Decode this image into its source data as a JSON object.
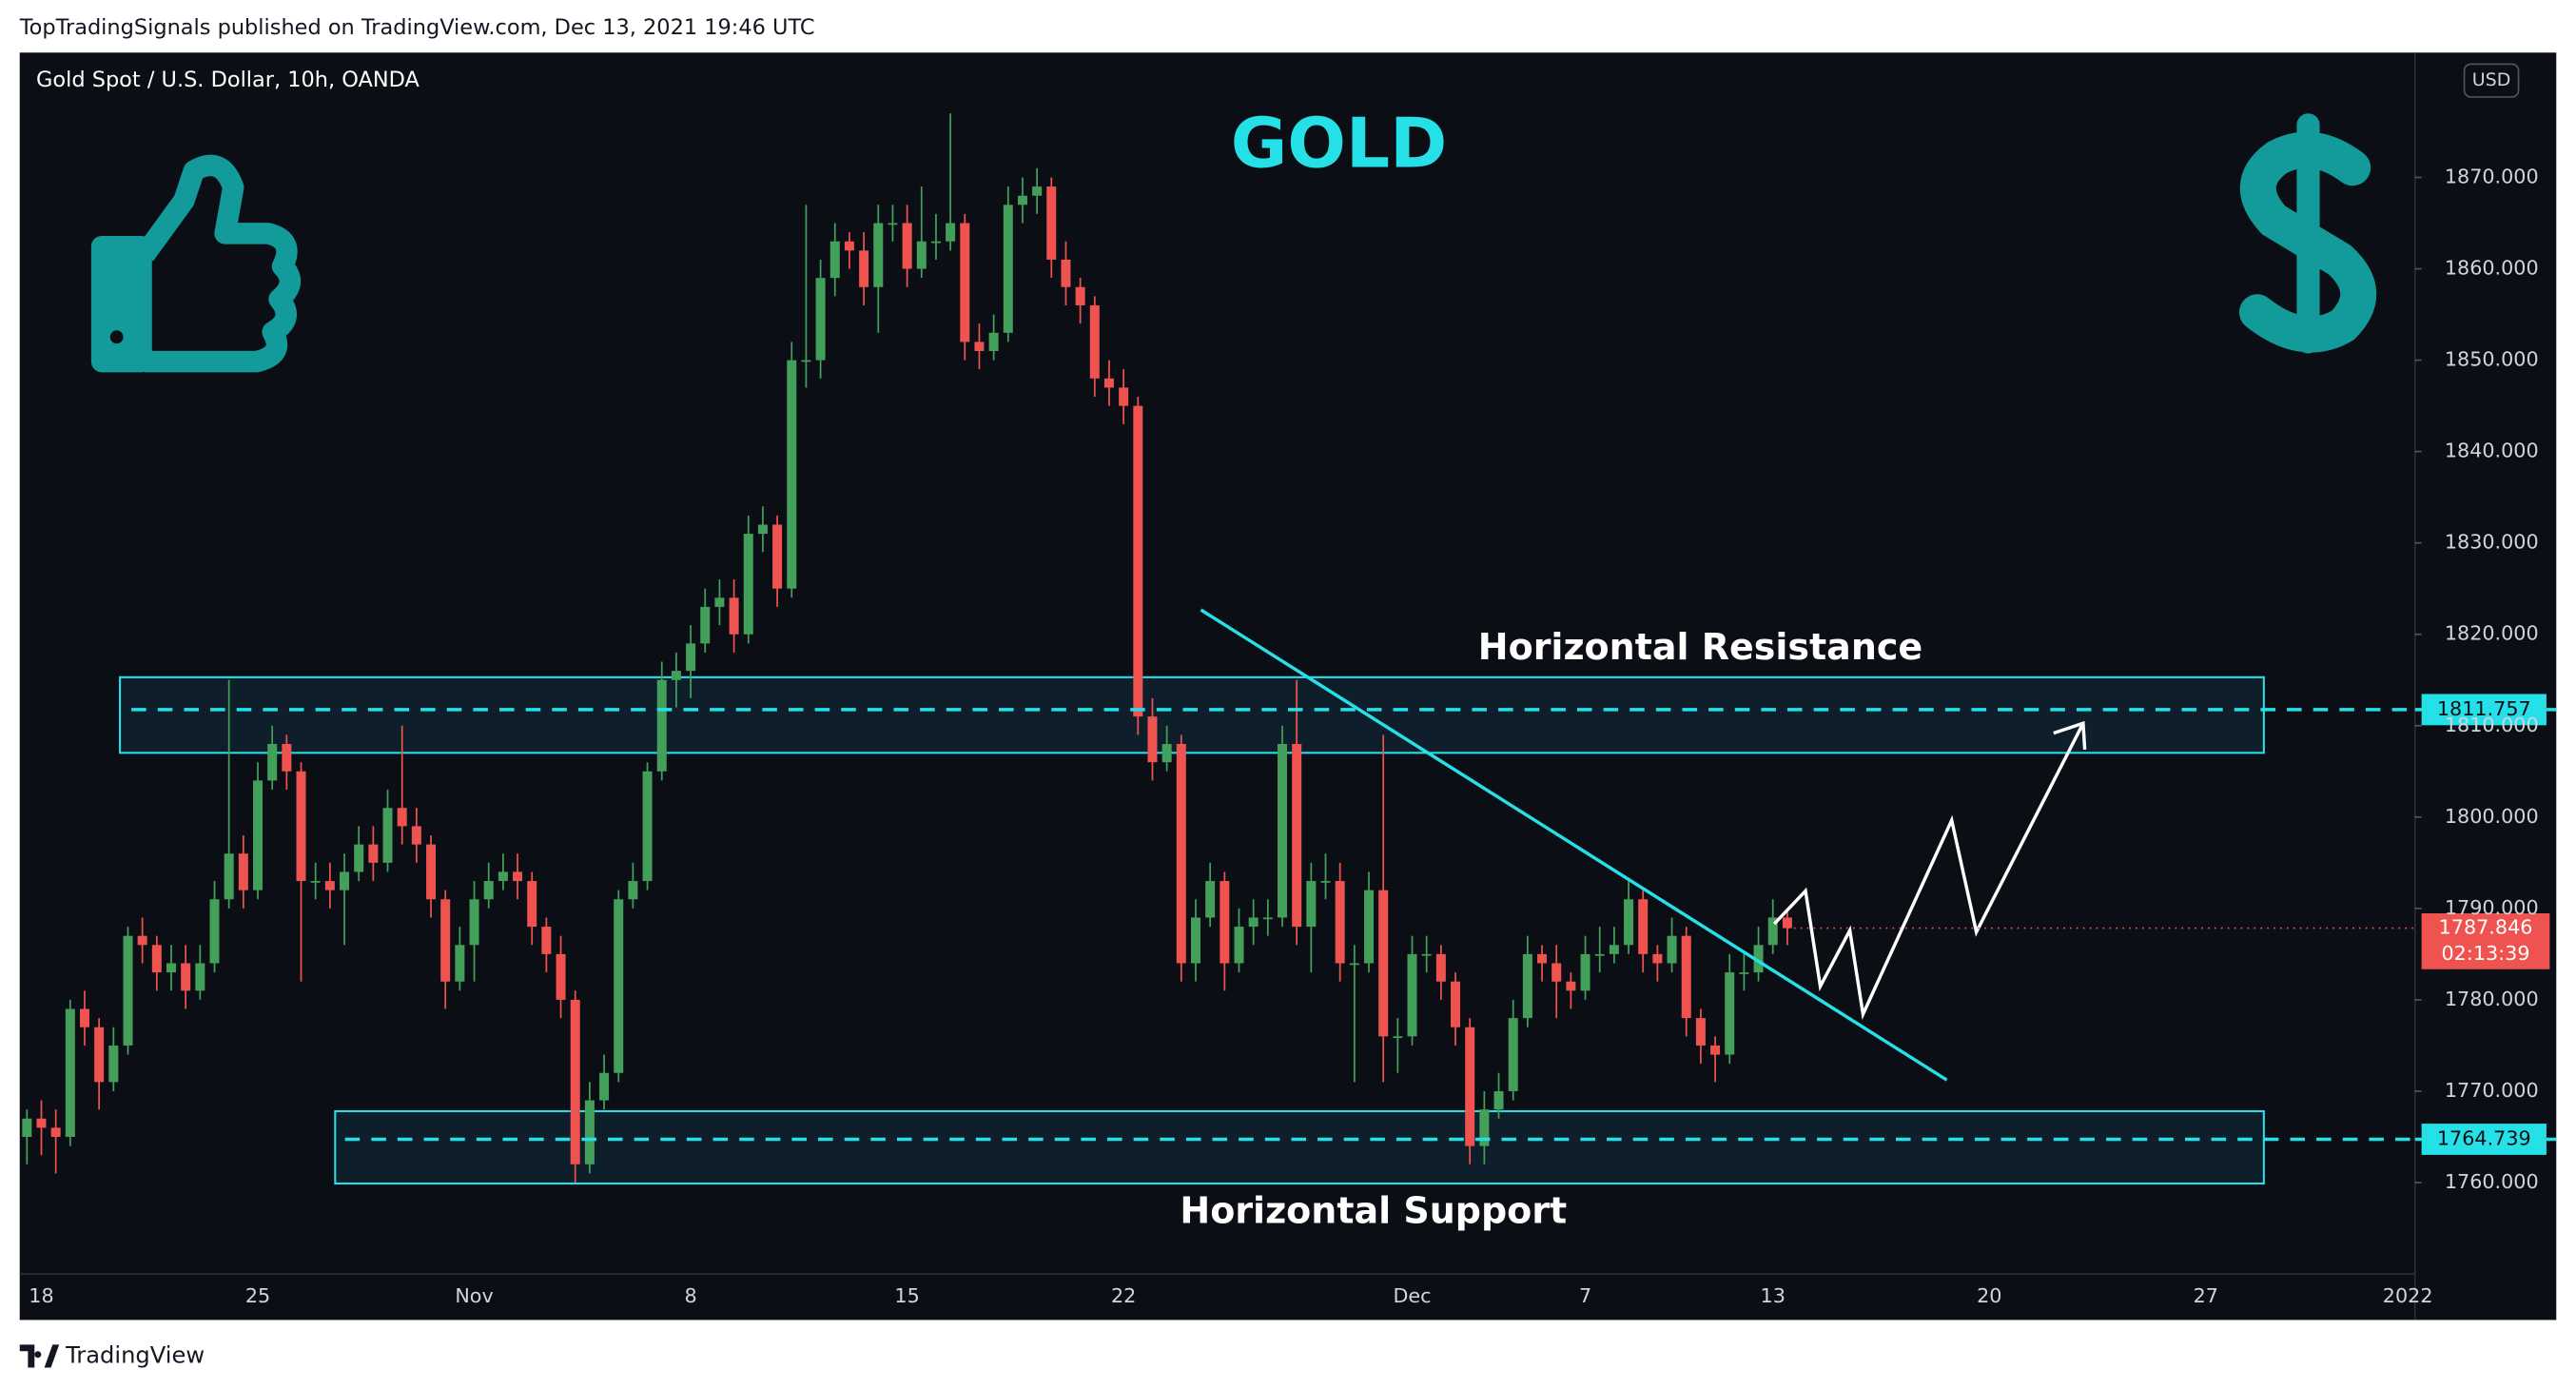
{
  "header": {
    "published": "TopTradingSignals published on TradingView.com, Dec 13, 2021 19:46 UTC",
    "brand": "TradingView"
  },
  "chart_data": {
    "type": "candlestick",
    "title": "GOLD",
    "symbol": "Gold Spot / U.S. Dollar, 10h, OANDA",
    "currency": "USD",
    "annotations": [
      "Horizontal Resistance",
      "Horizontal Support"
    ],
    "levels": [
      1811.757,
      1764.739
    ],
    "level_color": "#26e0e8",
    "countdown": "02:13:39",
    "up_color": "#43a05a",
    "down_color": "#ef5350",
    "ylim": [
      1750,
      1883.66
    ],
    "yticks": [
      {
        "value": 1760,
        "label": "1760.000"
      },
      {
        "value": 1770,
        "label": "1770.000"
      },
      {
        "value": 1780,
        "label": "1780.000"
      },
      {
        "value": 1790,
        "label": "1790.000"
      },
      {
        "value": 1800,
        "label": "1800.000"
      },
      {
        "value": 1810,
        "label": "1810.000"
      },
      {
        "value": 1820,
        "label": "1820.000"
      },
      {
        "value": 1830,
        "label": "1830.000"
      },
      {
        "value": 1840,
        "label": "1840.000"
      },
      {
        "value": 1850,
        "label": "1850.000"
      },
      {
        "value": 1860,
        "label": "1860.000"
      },
      {
        "value": 1870,
        "label": "1870.000"
      }
    ],
    "categories": [
      null,
      "18",
      null,
      null,
      null,
      null,
      null,
      null,
      null,
      null,
      null,
      null,
      null,
      null,
      null,
      null,
      "25",
      null,
      null,
      null,
      null,
      null,
      null,
      null,
      null,
      null,
      null,
      null,
      null,
      null,
      null,
      "Nov",
      null,
      null,
      null,
      null,
      null,
      null,
      null,
      null,
      null,
      null,
      null,
      null,
      null,
      null,
      "8",
      null,
      null,
      null,
      null,
      null,
      null,
      null,
      null,
      null,
      null,
      null,
      null,
      null,
      null,
      "15",
      null,
      null,
      null,
      null,
      null,
      null,
      null,
      null,
      null,
      null,
      null,
      null,
      null,
      null,
      "22",
      null,
      null,
      null,
      null,
      null,
      null,
      null,
      null,
      null,
      null,
      null,
      null,
      null,
      null,
      null,
      null,
      null,
      null,
      null,
      "Dec",
      null,
      null,
      null,
      null,
      null,
      null,
      null,
      null,
      null,
      null,
      null,
      "7",
      null,
      null,
      null,
      null,
      null,
      null,
      null,
      null,
      null,
      null,
      null,
      null,
      "13",
      null,
      null,
      null,
      null,
      null,
      null,
      null,
      null,
      null,
      null,
      null,
      null,
      null,
      null,
      "20",
      null,
      null,
      null,
      null,
      null,
      null,
      null,
      null,
      null,
      null,
      null,
      null,
      null,
      null,
      "27",
      null,
      null,
      null,
      null,
      null,
      null,
      null,
      null,
      null,
      null,
      null,
      null,
      null,
      "2022"
    ],
    "open": [
      1765,
      1767,
      1766,
      1765,
      1779,
      1777,
      1771,
      1775,
      1787,
      1786,
      1783,
      1784,
      1781,
      1784,
      1791,
      1796,
      1792,
      1804,
      1808,
      1805,
      1793,
      1793,
      1792,
      1794,
      1797,
      1795,
      1801,
      1799,
      1797,
      1791,
      1782,
      1786,
      1791,
      1793,
      1794,
      1793,
      1788,
      1785,
      1780,
      1762,
      1769,
      1772,
      1791,
      1793,
      1805,
      1815,
      1816,
      1819,
      1823,
      1824,
      1820,
      1831,
      1832,
      1825,
      1850,
      1850,
      1859,
      1863,
      1862,
      1858,
      1865,
      1865,
      1860,
      1863,
      1863,
      1865,
      1852,
      1851,
      1853,
      1867,
      1868,
      1869,
      1861,
      1858,
      1856,
      1848,
      1847,
      1845,
      1811,
      1806,
      1808,
      1784,
      1789,
      1793,
      1784,
      1788,
      1789,
      1789,
      1808,
      1788,
      1793,
      1793,
      1784,
      1784,
      1792,
      1776,
      1776,
      1785,
      1785,
      1782,
      1777,
      1764,
      1768,
      1770,
      1778,
      1785,
      1784,
      1782,
      1781,
      1785,
      1785,
      1786,
      1791,
      1785,
      1784,
      1787,
      1778,
      1775,
      1774,
      1783,
      1783,
      1786,
      1789,
      null,
      null,
      null,
      null,
      null,
      null,
      null,
      null,
      null,
      null,
      null,
      null,
      null,
      null,
      null,
      null,
      null,
      null,
      null,
      null,
      null,
      null,
      null,
      null,
      null,
      null,
      null,
      null,
      null,
      null,
      null,
      null,
      null,
      null,
      null,
      null,
      null,
      null,
      null,
      null,
      null,
      null,
      null
    ],
    "high": [
      1768,
      1769,
      1768,
      1780,
      1781,
      1778,
      1777,
      1788,
      1789,
      1787,
      1786,
      1786,
      1786,
      1793,
      1815,
      1798,
      1806,
      1810,
      1809,
      1806,
      1795,
      1795,
      1796,
      1799,
      1799,
      1803,
      1810,
      1801,
      1798,
      1792,
      1788,
      1793,
      1795,
      1796,
      1796,
      1794,
      1789,
      1787,
      1781,
      1771,
      1774,
      1792,
      1795,
      1806,
      1817,
      1818,
      1821,
      1825,
      1826,
      1826,
      1833,
      1834,
      1833,
      1852,
      1867,
      1861,
      1865,
      1864,
      1864,
      1867,
      1867,
      1867,
      1869,
      1866,
      1877,
      1866,
      1854,
      1855,
      1869,
      1870,
      1871,
      1870,
      1863,
      1859,
      1857,
      1850,
      1849,
      1846,
      1813,
      1810,
      1809,
      1791,
      1795,
      1794,
      1790,
      1791,
      1791,
      1810,
      1815,
      1795,
      1796,
      1795,
      1786,
      1794,
      1809,
      1778,
      1787,
      1787,
      1786,
      1783,
      1778,
      1770,
      1772,
      1780,
      1787,
      1786,
      1786,
      1783,
      1787,
      1788,
      1788,
      1793,
      1792,
      1786,
      1789,
      1788,
      1779,
      1776,
      1785,
      1785,
      1788,
      1791,
      1790,
      null,
      null,
      null,
      null,
      null,
      null,
      null,
      null,
      null,
      null,
      null,
      null,
      null,
      null,
      null,
      null,
      null,
      null,
      null,
      null,
      null,
      null,
      null,
      null,
      null,
      null,
      null,
      null,
      null,
      null,
      null,
      null,
      null,
      null,
      null,
      null,
      null,
      null,
      null,
      null,
      null,
      null,
      null
    ],
    "low": [
      1762,
      1763,
      1761,
      1764,
      1775,
      1768,
      1770,
      1774,
      1784,
      1781,
      1781,
      1779,
      1780,
      1783,
      1790,
      1790,
      1791,
      1803,
      1803,
      1782,
      1791,
      1790,
      1786,
      1793,
      1793,
      1794,
      1797,
      1795,
      1789,
      1779,
      1781,
      1782,
      1790,
      1792,
      1791,
      1786,
      1783,
      1778,
      1760,
      1761,
      1768,
      1771,
      1790,
      1792,
      1804,
      1812,
      1813,
      1818,
      1821,
      1818,
      1819,
      1829,
      1823,
      1824,
      1847,
      1848,
      1857,
      1860,
      1856,
      1853,
      1863,
      1858,
      1859,
      1861,
      1862,
      1850,
      1849,
      1850,
      1852,
      1865,
      1866,
      1859,
      1856,
      1854,
      1846,
      1845,
      1843,
      1809,
      1804,
      1805,
      1782,
      1782,
      1788,
      1781,
      1783,
      1786,
      1787,
      1788,
      1786,
      1783,
      1791,
      1782,
      1771,
      1783,
      1771,
      1772,
      1775,
      1783,
      1780,
      1775,
      1762,
      1762,
      1767,
      1769,
      1777,
      1782,
      1778,
      1779,
      1780,
      1783,
      1784,
      1785,
      1783,
      1782,
      1783,
      1776,
      1773,
      1771,
      1773,
      1781,
      1782,
      1785,
      1786,
      null,
      null,
      null,
      null,
      null,
      null,
      null,
      null,
      null,
      null,
      null,
      null,
      null,
      null,
      null,
      null,
      null,
      null,
      null,
      null,
      null,
      null,
      null,
      null,
      null,
      null,
      null,
      null,
      null,
      null,
      null,
      null,
      null,
      null,
      null,
      null,
      null,
      null,
      null,
      null,
      null,
      null,
      null
    ],
    "close": [
      1767,
      1766,
      1765,
      1779,
      1777,
      1771,
      1775,
      1787,
      1786,
      1783,
      1784,
      1781,
      1784,
      1791,
      1796,
      1792,
      1804,
      1808,
      1805,
      1793,
      1793,
      1792,
      1794,
      1797,
      1795,
      1801,
      1799,
      1797,
      1791,
      1782,
      1786,
      1791,
      1793,
      1794,
      1793,
      1788,
      1785,
      1780,
      1762,
      1769,
      1772,
      1791,
      1793,
      1805,
      1815,
      1816,
      1819,
      1823,
      1824,
      1820,
      1831,
      1832,
      1825,
      1850,
      1850,
      1859,
      1863,
      1862,
      1858,
      1865,
      1865,
      1860,
      1863,
      1863,
      1865,
      1852,
      1851,
      1853,
      1867,
      1868,
      1869,
      1861,
      1858,
      1856,
      1848,
      1847,
      1845,
      1811,
      1806,
      1808,
      1784,
      1789,
      1793,
      1784,
      1788,
      1789,
      1789,
      1808,
      1788,
      1793,
      1793,
      1784,
      1784,
      1792,
      1776,
      1776,
      1785,
      1785,
      1782,
      1777,
      1764,
      1768,
      1770,
      1778,
      1785,
      1784,
      1782,
      1781,
      1785,
      1785,
      1786,
      1791,
      1785,
      1784,
      1787,
      1778,
      1775,
      1774,
      1783,
      1783,
      1786,
      1789,
      1787.846,
      null,
      null,
      null,
      null,
      null,
      null,
      null,
      null,
      null,
      null,
      null,
      null,
      null,
      null,
      null,
      null,
      null,
      null,
      null,
      null,
      null,
      null,
      null,
      null,
      null,
      null,
      null,
      null,
      null,
      null,
      null,
      null,
      null,
      null,
      null,
      null,
      null,
      null,
      null,
      null,
      null,
      null,
      null
    ]
  }
}
